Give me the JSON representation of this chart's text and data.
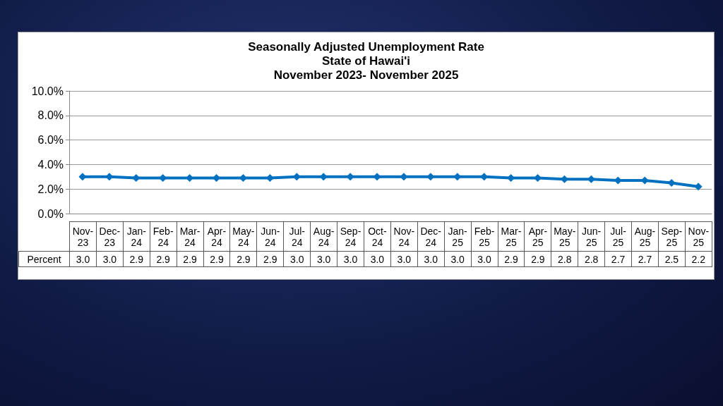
{
  "chart_data": {
    "type": "line",
    "title": "Seasonally Adjusted Unemployment Rate\nState of Hawai'i\nNovember 2023- November 2025",
    "categories": [
      "Nov-23",
      "Dec-23",
      "Jan-24",
      "Feb-24",
      "Mar-24",
      "Apr-24",
      "May-24",
      "Jun-24",
      "Jul-24",
      "Aug-24",
      "Sep-24",
      "Oct-24",
      "Nov-24",
      "Dec-24",
      "Jan-25",
      "Feb-25",
      "Mar-25",
      "Apr-25",
      "May-25",
      "Jun-25",
      "Jul-25",
      "Aug-25",
      "Sep-25",
      "Nov-25"
    ],
    "series": [
      {
        "name": "Percent",
        "color": "#0070c0",
        "values": [
          3.0,
          3.0,
          2.9,
          2.9,
          2.9,
          2.9,
          2.9,
          2.9,
          3.0,
          3.0,
          3.0,
          3.0,
          3.0,
          3.0,
          3.0,
          3.0,
          2.9,
          2.9,
          2.8,
          2.8,
          2.7,
          2.7,
          2.5,
          2.2
        ],
        "value_labels": [
          "3.0",
          "3.0",
          "2.9",
          "2.9",
          "2.9",
          "2.9",
          "2.9",
          "2.9",
          "3.0",
          "3.0",
          "3.0",
          "3.0",
          "3.0",
          "3.0",
          "3.0",
          "3.0",
          "2.9",
          "2.9",
          "2.8",
          "2.8",
          "2.7",
          "2.7",
          "2.5",
          "2.2"
        ]
      }
    ],
    "ylim": [
      0,
      10
    ],
    "yticks": [
      {
        "value": 0,
        "label": "0.0%"
      },
      {
        "value": 2,
        "label": "2.0%"
      },
      {
        "value": 4,
        "label": "4.0%"
      },
      {
        "value": 6,
        "label": "6.0%"
      },
      {
        "value": 8,
        "label": "8.0%"
      },
      {
        "value": 10,
        "label": "10.0%"
      }
    ],
    "grid": "y",
    "legend": false,
    "marker": "diamond",
    "line_style": "solid"
  }
}
